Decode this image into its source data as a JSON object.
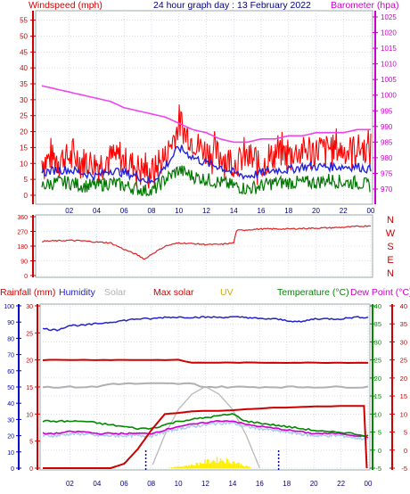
{
  "header": {
    "windspeed_label": "Windspeed (mph)",
    "title": "24 hour graph day : 13 February 2022",
    "barometer_label": "Barometer (hpa)"
  },
  "colors": {
    "wind": "#ff0000",
    "gust": "#ff0000",
    "avgwind": "#2222dd",
    "minwind": "#007700",
    "baro": "#ee44ee",
    "dir": "#dd2222",
    "humidity": "#2222cc",
    "solar": "#b0b0b0",
    "maxsolar": "#cc0000",
    "uv": "#ccaa00",
    "temp": "#008800",
    "dew": "#cc00cc",
    "rain": "#cc0000",
    "grid": "#c0c8d8",
    "axis_wind": "#cc0000",
    "axis_baro": "#cc00cc",
    "axis_rain": "#0000cc",
    "axis_temp": "#008800",
    "axis_dew": "#cc0000"
  },
  "chart_data": [
    {
      "type": "line",
      "panel": "wind-barometer",
      "x_ticks": [
        "02",
        "04",
        "06",
        "08",
        "10",
        "12",
        "14",
        "16",
        "18",
        "20",
        "22",
        "00"
      ],
      "ylabel_left": "Windspeed (mph)",
      "ylim_left": [
        0,
        56
      ],
      "yticks_left": [
        0,
        5,
        10,
        15,
        20,
        25,
        30,
        35,
        40,
        45,
        50,
        55
      ],
      "ylabel_right": "Barometer (hpa)",
      "ylim_right": [
        968,
        1025
      ],
      "yticks_right": [
        970,
        975,
        980,
        985,
        990,
        995,
        1000,
        1005,
        1010,
        1015,
        1020,
        1025
      ],
      "x": [
        0,
        1,
        2,
        3,
        4,
        5,
        6,
        7,
        8,
        9,
        10,
        11,
        12,
        13,
        14,
        15,
        16,
        17,
        18,
        19,
        20,
        21,
        22,
        23,
        24
      ],
      "series": [
        {
          "name": "gust",
          "values": [
            11,
            12,
            12,
            11,
            10,
            12,
            11,
            9,
            7,
            12,
            22,
            17,
            14,
            13,
            10,
            12,
            9,
            13,
            13,
            14,
            14,
            15,
            14,
            15,
            14
          ]
        },
        {
          "name": "average",
          "values": [
            7,
            8,
            8,
            7,
            6,
            8,
            7,
            6,
            4,
            9,
            15,
            12,
            10,
            9,
            7,
            6,
            7,
            8,
            8,
            9,
            9,
            9,
            9,
            9,
            8
          ]
        },
        {
          "name": "minimum",
          "values": [
            3,
            4,
            4,
            3,
            3,
            4,
            3,
            2,
            1,
            5,
            8,
            6,
            5,
            4,
            3,
            2,
            3,
            4,
            4,
            4,
            4,
            5,
            4,
            4,
            3
          ]
        },
        {
          "name": "barometer",
          "values": [
            1003,
            1002,
            1001,
            1000,
            999,
            998,
            996,
            995,
            994,
            993,
            991,
            989,
            988,
            986,
            985,
            985,
            986,
            986,
            987,
            987,
            988,
            988,
            988,
            989,
            989
          ]
        }
      ]
    },
    {
      "type": "line",
      "panel": "wind-direction",
      "yticks": [
        0,
        90,
        180,
        270,
        360
      ],
      "ylim": [
        0,
        360
      ],
      "compass_labels": [
        "N",
        "W",
        "S",
        "E",
        "N"
      ],
      "x": [
        0,
        1,
        2,
        3,
        4,
        5,
        6,
        7,
        7.5,
        8,
        9,
        10,
        11,
        12,
        13,
        14,
        14.2,
        15,
        16,
        17,
        18,
        19,
        20,
        21,
        22,
        23,
        24
      ],
      "values": [
        210,
        212,
        215,
        212,
        205,
        200,
        160,
        125,
        100,
        130,
        180,
        200,
        195,
        190,
        190,
        200,
        275,
        280,
        285,
        285,
        285,
        288,
        290,
        292,
        295,
        300,
        305
      ]
    },
    {
      "type": "line",
      "panel": "weather",
      "labels": [
        "Rainfall (mm)",
        "Humidity",
        "Solar",
        "Max solar",
        "UV",
        "Temperature (°C)",
        "Dew Point (°C)"
      ],
      "yticks_humidity": [
        0,
        10,
        20,
        30,
        40,
        50,
        60,
        70,
        80,
        90,
        100
      ],
      "yticks_rain": [
        0,
        5,
        10,
        15,
        20,
        25,
        30
      ],
      "yticks_temp": [
        -5,
        0,
        5,
        10,
        15,
        20,
        25,
        30,
        35,
        40
      ],
      "ylim_temp": [
        -5,
        40
      ],
      "x": [
        0,
        1,
        2,
        3,
        4,
        5,
        6,
        7,
        8,
        9,
        10,
        11,
        12,
        13,
        14,
        15,
        16,
        17,
        18,
        19,
        20,
        21,
        22,
        23,
        24
      ],
      "series": [
        {
          "name": "Humidity",
          "values": [
            86,
            85,
            88,
            88,
            89,
            90,
            91,
            92,
            92,
            93,
            93,
            93,
            93,
            93,
            93,
            93,
            92,
            92,
            91,
            90,
            92,
            92,
            92,
            93,
            93
          ]
        },
        {
          "name": "Temperature (°C)",
          "values": [
            8,
            8,
            8,
            8,
            7.5,
            7,
            6.5,
            6,
            6,
            7,
            8,
            8.5,
            9,
            9.5,
            10,
            8,
            7.5,
            7,
            6.5,
            6,
            5.5,
            5,
            5,
            4.5,
            4
          ]
        },
        {
          "name": "Dew Point (°C)",
          "values": [
            4,
            4,
            4.5,
            4.5,
            4,
            4,
            4,
            4,
            4,
            5,
            6,
            6.5,
            7,
            7.5,
            7.5,
            6.5,
            6,
            5.5,
            5,
            4.5,
            4,
            4,
            4,
            3.5,
            3
          ]
        },
        {
          "name": "Solar",
          "values": [
            null,
            null,
            null,
            null,
            null,
            null,
            null,
            null,
            0,
            80,
            140,
            200,
            230,
            210,
            150,
            80,
            0,
            null,
            null,
            null,
            null,
            null,
            null,
            null,
            null
          ]
        },
        {
          "name": "Max solar",
          "values": [
            null,
            null,
            null,
            null,
            null,
            null,
            null,
            null,
            0,
            130,
            230,
            290,
            320,
            290,
            230,
            130,
            0,
            null,
            null,
            null,
            null,
            null,
            null,
            null,
            null
          ]
        },
        {
          "name": "UV",
          "values": [
            0,
            0,
            0,
            0,
            0,
            0,
            0,
            0,
            0,
            0,
            0.3,
            0.6,
            1.2,
            1.6,
            1.2,
            0.3,
            0,
            0,
            0,
            0,
            0,
            0,
            0,
            0,
            0
          ]
        },
        {
          "name": "Rainfall (mm)",
          "values": [
            0,
            0,
            0,
            0,
            0,
            0,
            0.8,
            3.5,
            7,
            10,
            10.2,
            10.5,
            10.6,
            10.6,
            10.7,
            10.9,
            11,
            11.2,
            11.2,
            11.3,
            11.4,
            11.4,
            11.5,
            11.5,
            11.5
          ]
        }
      ],
      "flat_lines": [
        {
          "name": "rain rate reference",
          "value": 20
        },
        {
          "name": "solar reference",
          "value": 15
        }
      ]
    }
  ]
}
